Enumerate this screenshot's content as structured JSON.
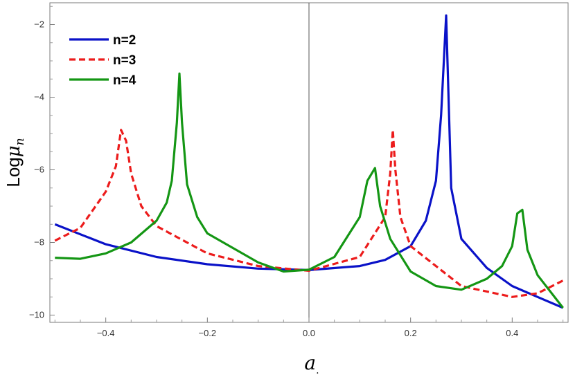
{
  "chart_data": {
    "type": "line",
    "title": "",
    "xlabel": "a.",
    "ylabel": "Logμn",
    "xlim": [
      -0.51,
      0.51
    ],
    "ylim": [
      -10.2,
      -1.4
    ],
    "xticks": [
      -0.4,
      -0.2,
      0.0,
      0.2,
      0.4
    ],
    "xtick_labels": [
      "-0.4",
      "-0.2",
      "0.0",
      "0.2",
      "0.4"
    ],
    "yticks": [
      -10,
      -8,
      -6,
      -4,
      -2
    ],
    "ytick_labels": [
      "-10",
      "-8",
      "-6",
      "-4",
      "-2"
    ],
    "grid": false,
    "legend_position": "top-left",
    "series": [
      {
        "name": "n=2",
        "color": "#0a12c8",
        "dash": "solid",
        "x": [
          -0.5,
          -0.4,
          -0.3,
          -0.2,
          -0.1,
          0.0,
          0.1,
          0.15,
          0.2,
          0.23,
          0.25,
          0.26,
          0.27,
          0.28,
          0.3,
          0.35,
          0.4,
          0.45,
          0.5
        ],
        "y": [
          -7.5,
          -8.05,
          -8.4,
          -8.6,
          -8.72,
          -8.76,
          -8.65,
          -8.48,
          -8.1,
          -7.4,
          -6.3,
          -4.5,
          -1.75,
          -6.5,
          -7.9,
          -8.7,
          -9.2,
          -9.5,
          -9.8
        ]
      },
      {
        "name": "n=3",
        "color": "#ec1c1c",
        "dash": "dashed",
        "x": [
          -0.5,
          -0.45,
          -0.4,
          -0.38,
          -0.37,
          -0.36,
          -0.35,
          -0.33,
          -0.3,
          -0.2,
          -0.1,
          0.0,
          0.1,
          0.15,
          0.16,
          0.165,
          0.17,
          0.18,
          0.2,
          0.3,
          0.4,
          0.45,
          0.5
        ],
        "y": [
          -7.95,
          -7.6,
          -6.6,
          -5.9,
          -4.9,
          -5.2,
          -6.1,
          -7.0,
          -7.55,
          -8.3,
          -8.65,
          -8.78,
          -8.4,
          -7.3,
          -6.1,
          -4.9,
          -6.0,
          -7.3,
          -8.1,
          -9.2,
          -9.5,
          -9.4,
          -9.05
        ]
      },
      {
        "name": "n=4",
        "color": "#149614",
        "dash": "solid",
        "x": [
          -0.5,
          -0.45,
          -0.4,
          -0.35,
          -0.3,
          -0.28,
          -0.27,
          -0.26,
          -0.255,
          -0.25,
          -0.24,
          -0.22,
          -0.2,
          -0.1,
          -0.05,
          0.0,
          0.05,
          0.1,
          0.115,
          0.13,
          0.14,
          0.16,
          0.2,
          0.25,
          0.3,
          0.35,
          0.38,
          0.4,
          0.41,
          0.42,
          0.43,
          0.45,
          0.5
        ],
        "y": [
          -8.42,
          -8.45,
          -8.3,
          -8.0,
          -7.4,
          -6.9,
          -6.3,
          -4.7,
          -3.35,
          -4.7,
          -6.4,
          -7.3,
          -7.75,
          -8.55,
          -8.8,
          -8.75,
          -8.4,
          -7.3,
          -6.3,
          -5.95,
          -7.0,
          -7.9,
          -8.8,
          -9.2,
          -9.3,
          -9.0,
          -8.65,
          -8.1,
          -7.2,
          -7.1,
          -8.2,
          -8.9,
          -9.8
        ]
      }
    ]
  }
}
